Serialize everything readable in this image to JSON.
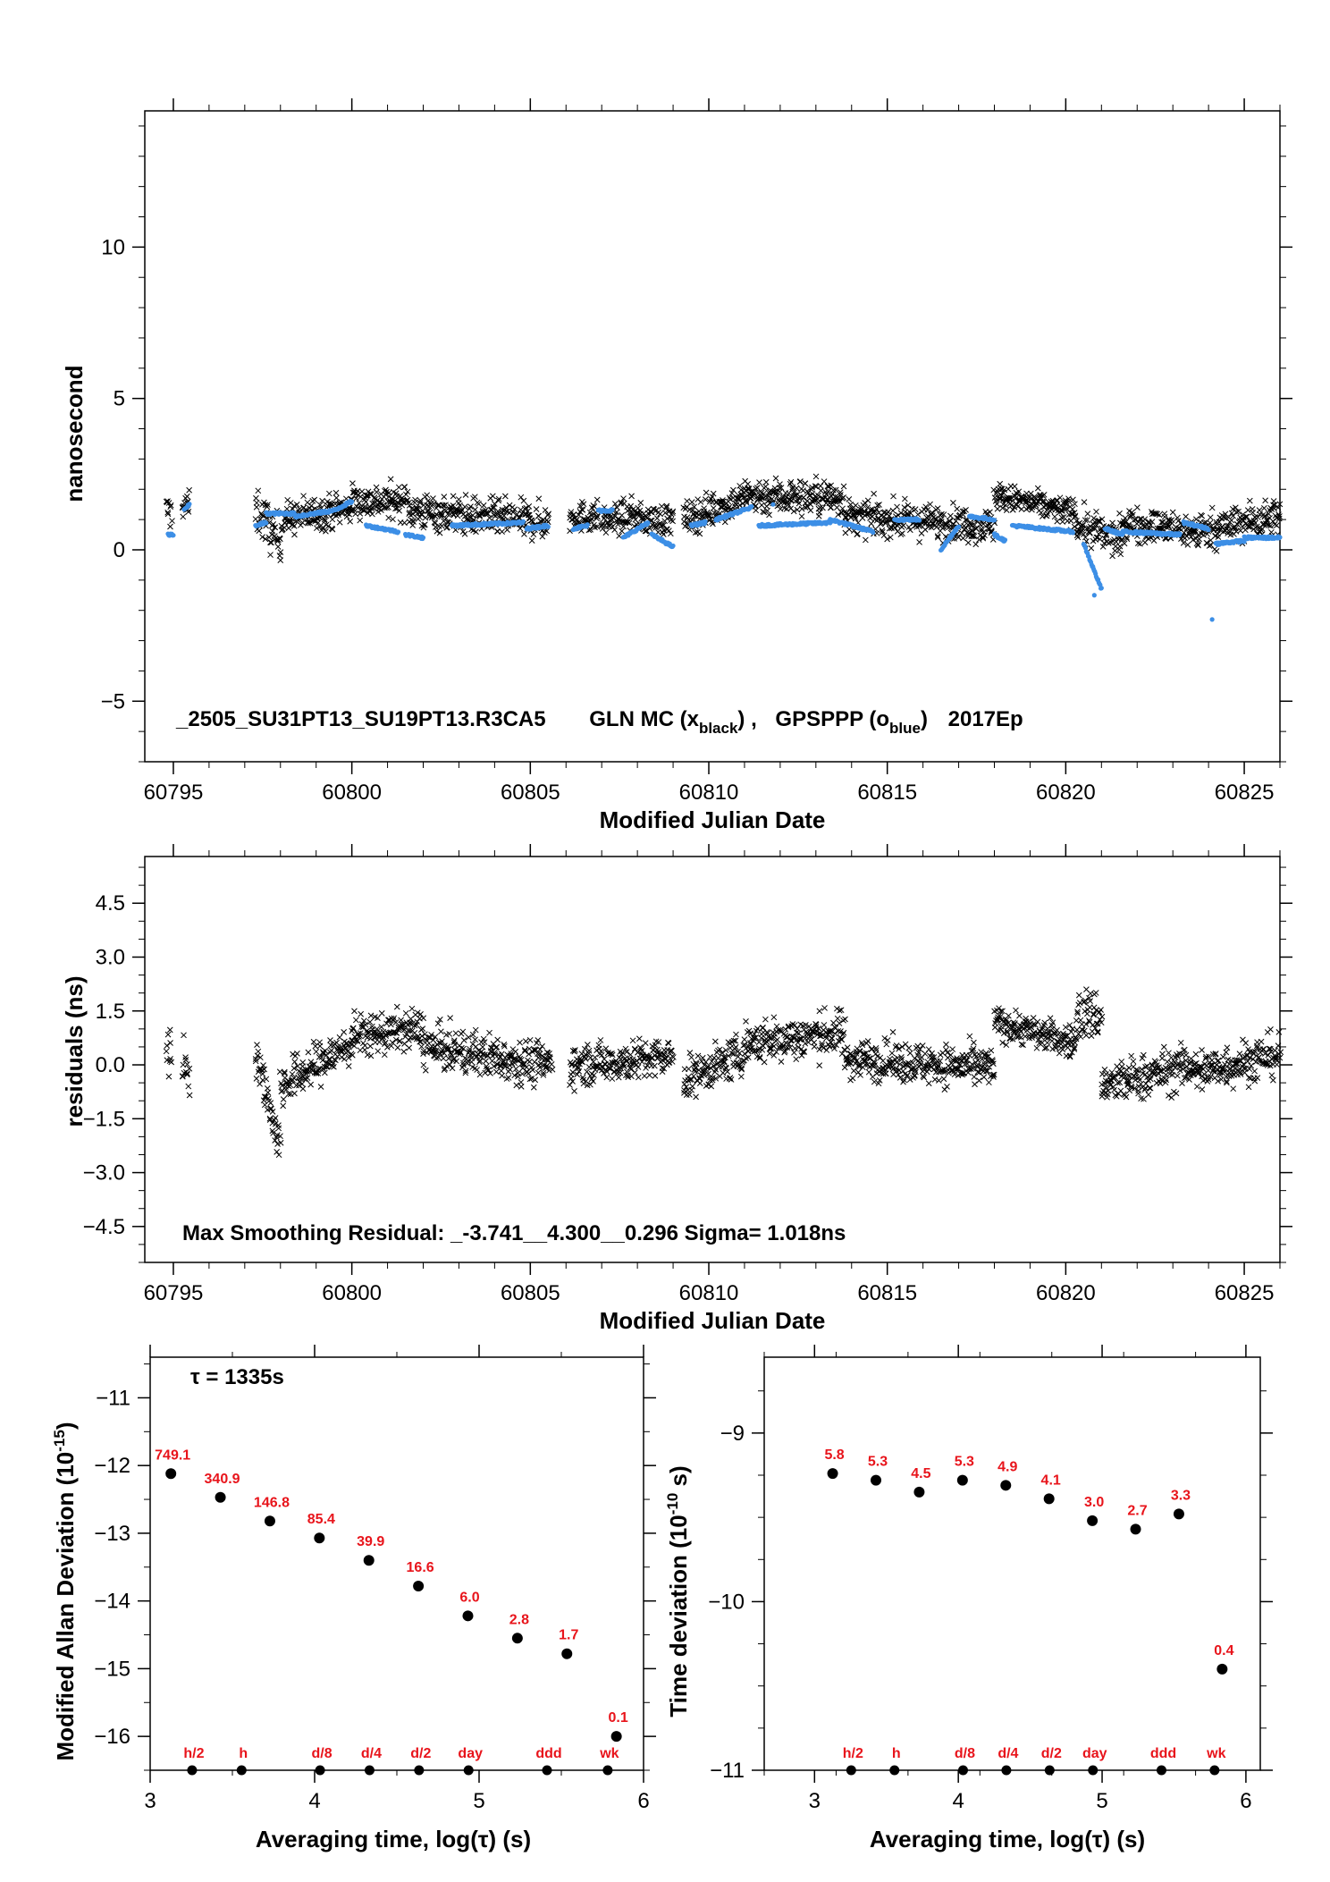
{
  "chart_data": [
    {
      "type": "scatter",
      "ylabel": "nanosecond",
      "xlabel": "Modified Julian Date",
      "xlim": [
        60794.2,
        60826
      ],
      "ylim": [
        -7,
        14.5
      ],
      "xticks": [
        60795,
        60800,
        60805,
        60810,
        60815,
        60820,
        60825
      ],
      "yticks": [
        -5,
        0,
        5,
        10
      ],
      "annotation": {
        "file": "_2505_SU31PT13_SU19PT13.R3CA5",
        "gln": "GLN MC (x",
        "gln_sub": "black",
        "gln_end": ") ,",
        "gps": "GPSPPP (o",
        "gps_sub": "blue",
        "gps_end": ")",
        "epoch": "2017Ep"
      },
      "series": [
        {
          "marker": "x",
          "color": "#000000",
          "segments": [
            {
              "x0": 60794.8,
              "x1": 60794.95,
              "y0": 1.3,
              "y1": 1.2,
              "spread": 1.0
            },
            {
              "x0": 60795.25,
              "x1": 60795.45,
              "y0": 1.5,
              "y1": 1.4,
              "spread": 0.9
            },
            {
              "x0": 60797.3,
              "x1": 60798.0,
              "y0": 1.4,
              "y1": 0.2,
              "spread": 1.4
            },
            {
              "x0": 60798.0,
              "x1": 60800.0,
              "y0": 1.0,
              "y1": 1.4,
              "spread": 1.0
            },
            {
              "x0": 60800.0,
              "x1": 60801.6,
              "y0": 1.6,
              "y1": 1.6,
              "spread": 1.0
            },
            {
              "x0": 60801.6,
              "x1": 60805.5,
              "y0": 1.3,
              "y1": 0.9,
              "spread": 1.1
            },
            {
              "x0": 60806.1,
              "x1": 60806.9,
              "y0": 1.1,
              "y1": 1.1,
              "spread": 0.9
            },
            {
              "x0": 60807.0,
              "x1": 60808.0,
              "y0": 0.9,
              "y1": 1.2,
              "spread": 0.9
            },
            {
              "x0": 60808.0,
              "x1": 60809.0,
              "y0": 1.0,
              "y1": 1.0,
              "spread": 0.9
            },
            {
              "x0": 60809.3,
              "x1": 60811.0,
              "y0": 1.0,
              "y1": 1.7,
              "spread": 1.0
            },
            {
              "x0": 60811.0,
              "x1": 60813.8,
              "y0": 1.8,
              "y1": 1.7,
              "spread": 1.1
            },
            {
              "x0": 60813.8,
              "x1": 60818.0,
              "y0": 1.1,
              "y1": 0.8,
              "spread": 1.0
            },
            {
              "x0": 60818.0,
              "x1": 60820.3,
              "y0": 1.8,
              "y1": 1.2,
              "spread": 0.8
            },
            {
              "x0": 60820.3,
              "x1": 60821.6,
              "y0": 0.8,
              "y1": 0.3,
              "spread": 1.1
            },
            {
              "x0": 60821.6,
              "x1": 60823.6,
              "y0": 0.9,
              "y1": 0.6,
              "spread": 1.0
            },
            {
              "x0": 60823.6,
              "x1": 60826.0,
              "y0": 0.6,
              "y1": 1.1,
              "spread": 1.1
            }
          ]
        },
        {
          "marker": "o",
          "color": "#3d8fe6",
          "segments": [
            {
              "x0": 60794.85,
              "x1": 60795.0,
              "y0": 0.5,
              "y1": 0.5
            },
            {
              "x0": 60795.3,
              "x1": 60795.45,
              "y0": 1.3,
              "y1": 1.5
            },
            {
              "x0": 60797.3,
              "x1": 60797.6,
              "y0": 0.8,
              "y1": 0.9
            },
            {
              "x0": 60797.6,
              "x1": 60798.4,
              "y0": 1.2,
              "y1": 1.2
            },
            {
              "x0": 60798.4,
              "x1": 60799.5,
              "y0": 1.1,
              "y1": 1.3
            },
            {
              "x0": 60799.5,
              "x1": 60800.0,
              "y0": 1.3,
              "y1": 1.6
            },
            {
              "x0": 60800.4,
              "x1": 60801.3,
              "y0": 0.8,
              "y1": 0.6
            },
            {
              "x0": 60801.5,
              "x1": 60802.0,
              "y0": 0.5,
              "y1": 0.4
            },
            {
              "x0": 60802.8,
              "x1": 60804.8,
              "y0": 0.8,
              "y1": 0.9
            },
            {
              "x0": 60804.9,
              "x1": 60805.5,
              "y0": 0.7,
              "y1": 0.8
            },
            {
              "x0": 60806.2,
              "x1": 60806.6,
              "y0": 0.7,
              "y1": 0.8
            },
            {
              "x0": 60806.9,
              "x1": 60807.3,
              "y0": 1.3,
              "y1": 1.3
            },
            {
              "x0": 60807.6,
              "x1": 60808.3,
              "y0": 0.4,
              "y1": 0.9
            },
            {
              "x0": 60808.4,
              "x1": 60809.0,
              "y0": 0.5,
              "y1": 0.1
            },
            {
              "x0": 60809.5,
              "x1": 60809.9,
              "y0": 0.8,
              "y1": 0.9
            },
            {
              "x0": 60810.2,
              "x1": 60811.2,
              "y0": 1.0,
              "y1": 1.4
            },
            {
              "x0": 60811.4,
              "x1": 60813.4,
              "y0": 0.8,
              "y1": 0.9
            },
            {
              "x0": 60813.4,
              "x1": 60814.6,
              "y0": 1.0,
              "y1": 0.6
            },
            {
              "x0": 60815.2,
              "x1": 60815.9,
              "y0": 1.0,
              "y1": 1.0
            },
            {
              "x0": 60816.5,
              "x1": 60817.0,
              "y0": 0.0,
              "y1": 0.8
            },
            {
              "x0": 60817.3,
              "x1": 60818.0,
              "y0": 1.1,
              "y1": 1.0
            },
            {
              "x0": 60818.0,
              "x1": 60818.3,
              "y0": 0.5,
              "y1": 0.3
            },
            {
              "x0": 60818.5,
              "x1": 60820.2,
              "y0": 0.8,
              "y1": 0.6
            },
            {
              "x0": 60820.5,
              "x1": 60821.0,
              "y0": 0.2,
              "y1": -1.3
            },
            {
              "x0": 60821.1,
              "x1": 60821.6,
              "y0": 0.7,
              "y1": 0.5
            },
            {
              "x0": 60821.6,
              "x1": 60823.2,
              "y0": 0.6,
              "y1": 0.5
            },
            {
              "x0": 60823.3,
              "x1": 60824.0,
              "y0": 0.9,
              "y1": 0.7
            },
            {
              "x0": 60824.2,
              "x1": 60825.0,
              "y0": 0.2,
              "y1": 0.3
            },
            {
              "x0": 60825.0,
              "x1": 60826.0,
              "y0": 0.4,
              "y1": 0.4
            }
          ],
          "outliers": [
            [
              60824.1,
              -2.3
            ],
            [
              60820.8,
              -1.5
            ],
            [
              60811.8,
              1.5
            ]
          ]
        }
      ]
    },
    {
      "type": "scatter",
      "ylabel": "residuals (ns)",
      "xlabel": "Modified Julian Date",
      "xlim": [
        60794.2,
        60826
      ],
      "ylim": [
        -5.5,
        5.8
      ],
      "xticks": [
        60795,
        60800,
        60805,
        60810,
        60815,
        60820,
        60825
      ],
      "yticks": [
        -4.5,
        -3.0,
        -1.5,
        0.0,
        1.5,
        3.0,
        4.5
      ],
      "ytick_labels": [
        "−4.5",
        "−3.0",
        "−1.5",
        "0.0",
        "1.5",
        "3.0",
        "4.5"
      ],
      "annotation": "Max Smoothing Residual: _-3.741__4.300__0.296  Sigma= 1.018ns",
      "series": [
        {
          "marker": "x",
          "color": "#000000",
          "segments": [
            {
              "x0": 60794.8,
              "x1": 60794.95,
              "y0": 0.5,
              "y1": 0.2,
              "spread": 1.2
            },
            {
              "x0": 60795.25,
              "x1": 60795.45,
              "y0": 0.2,
              "y1": -0.2,
              "spread": 1.2
            },
            {
              "x0": 60797.3,
              "x1": 60798.0,
              "y0": 0.4,
              "y1": -2.3,
              "spread": 1.1
            },
            {
              "x0": 60798.0,
              "x1": 60800.0,
              "y0": -0.6,
              "y1": 0.6,
              "spread": 1.1
            },
            {
              "x0": 60800.0,
              "x1": 60802.0,
              "y0": 0.8,
              "y1": 1.0,
              "spread": 1.0
            },
            {
              "x0": 60802.0,
              "x1": 60805.6,
              "y0": 0.5,
              "y1": 0.0,
              "spread": 1.1
            },
            {
              "x0": 60806.1,
              "x1": 60809.0,
              "y0": 0.0,
              "y1": 0.2,
              "spread": 1.0
            },
            {
              "x0": 60809.3,
              "x1": 60811.0,
              "y0": -0.4,
              "y1": 0.3,
              "spread": 1.0
            },
            {
              "x0": 60811.0,
              "x1": 60813.8,
              "y0": 0.6,
              "y1": 0.9,
              "spread": 1.1
            },
            {
              "x0": 60813.8,
              "x1": 60818.0,
              "y0": 0.2,
              "y1": -0.1,
              "spread": 1.0
            },
            {
              "x0": 60818.0,
              "x1": 60820.3,
              "y0": 1.2,
              "y1": 0.6,
              "spread": 0.8
            },
            {
              "x0": 60820.3,
              "x1": 60821.0,
              "y0": 1.4,
              "y1": 1.4,
              "spread": 1.3
            },
            {
              "x0": 60821.0,
              "x1": 60823.6,
              "y0": -0.6,
              "y1": 0.0,
              "spread": 1.1
            },
            {
              "x0": 60823.6,
              "x1": 60826.0,
              "y0": -0.2,
              "y1": 0.3,
              "spread": 1.1
            }
          ]
        }
      ]
    },
    {
      "type": "scatter",
      "ylabel": "Modified Allan Deviation (10",
      "ylabel_sup": "-15",
      "ylabel_end": ")",
      "xlabel": "Averaging time, log(τ) (s)",
      "xlim": [
        3.0,
        6.0
      ],
      "ylim": [
        -16.5,
        -10.4
      ],
      "xticks": [
        3,
        4,
        5,
        6
      ],
      "yticks": [
        -16,
        -15,
        -14,
        -13,
        -12,
        -11
      ],
      "ytick_labels": [
        "−16",
        "−15",
        "−14",
        "−13",
        "−12",
        "−11"
      ],
      "annotation": "τ = 1335s",
      "points": [
        {
          "x": 3.126,
          "y": -12.12,
          "label": "749.1"
        },
        {
          "x": 3.427,
          "y": -12.47,
          "label": "340.9"
        },
        {
          "x": 3.728,
          "y": -12.82,
          "label": "146.8"
        },
        {
          "x": 4.029,
          "y": -13.07,
          "label": "85.4"
        },
        {
          "x": 4.33,
          "y": -13.4,
          "label": "39.9"
        },
        {
          "x": 4.631,
          "y": -13.78,
          "label": "16.6"
        },
        {
          "x": 4.932,
          "y": -14.22,
          "label": "6.0"
        },
        {
          "x": 5.233,
          "y": -14.55,
          "label": "2.8"
        },
        {
          "x": 5.534,
          "y": -14.78,
          "label": "1.7"
        },
        {
          "x": 5.835,
          "y": -16.0,
          "label": "0.1"
        }
      ],
      "markers": [
        {
          "x": 3.255,
          "label": "h/2"
        },
        {
          "x": 3.556,
          "label": "h"
        },
        {
          "x": 4.033,
          "label": "d/8"
        },
        {
          "x": 4.334,
          "label": "d/4"
        },
        {
          "x": 4.635,
          "label": "d/2"
        },
        {
          "x": 4.936,
          "label": "day"
        },
        {
          "x": 5.413,
          "label": "ddd"
        },
        {
          "x": 5.782,
          "label": "wk"
        }
      ]
    },
    {
      "type": "scatter",
      "ylabel": "Time deviation (10",
      "ylabel_sup": "-10",
      "ylabel_end": " s)",
      "xlabel": "Averaging time, log(τ) (s)",
      "xlim": [
        2.65,
        6.1
      ],
      "ylim": [
        -11.0,
        -8.55
      ],
      "xticks": [
        3,
        4,
        5,
        6
      ],
      "yticks": [
        -11,
        -10,
        -9
      ],
      "ytick_labels": [
        "−11",
        "−10",
        "−9"
      ],
      "points": [
        {
          "x": 3.126,
          "y": -9.24,
          "label": "5.8"
        },
        {
          "x": 3.427,
          "y": -9.28,
          "label": "5.3"
        },
        {
          "x": 3.728,
          "y": -9.35,
          "label": "4.5"
        },
        {
          "x": 4.029,
          "y": -9.28,
          "label": "5.3"
        },
        {
          "x": 4.33,
          "y": -9.31,
          "label": "4.9"
        },
        {
          "x": 4.631,
          "y": -9.39,
          "label": "4.1"
        },
        {
          "x": 4.932,
          "y": -9.52,
          "label": "3.0"
        },
        {
          "x": 5.233,
          "y": -9.57,
          "label": "2.7"
        },
        {
          "x": 5.534,
          "y": -9.48,
          "label": "3.3"
        },
        {
          "x": 5.835,
          "y": -10.4,
          "label": "0.4"
        }
      ],
      "markers": [
        {
          "x": 3.255,
          "label": "h/2"
        },
        {
          "x": 3.556,
          "label": "h"
        },
        {
          "x": 4.033,
          "label": "d/8"
        },
        {
          "x": 4.334,
          "label": "d/4"
        },
        {
          "x": 4.635,
          "label": "d/2"
        },
        {
          "x": 4.936,
          "label": "day"
        },
        {
          "x": 5.413,
          "label": "ddd"
        },
        {
          "x": 5.782,
          "label": "wk"
        }
      ]
    }
  ]
}
